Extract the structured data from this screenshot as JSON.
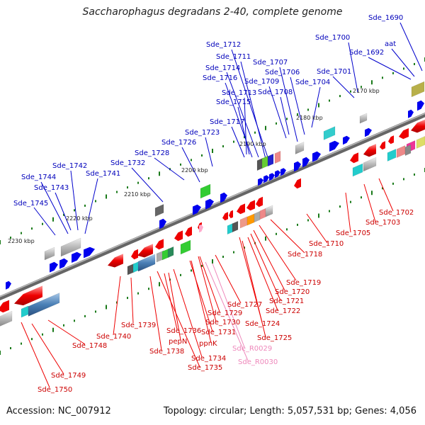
{
  "title": "Saccharophagus degradans 2-40, complete genome",
  "footer": {
    "accession": "Accession: NC_007912",
    "topology": "Topology: circular; Length: 5,057,531 bp; Genes: 4,056"
  },
  "colors": {
    "forward_gene": "#0000ee",
    "reverse_gene": "#ee0000",
    "forward_label": "#0000bb",
    "reverse_label": "#cc0000",
    "rna_label": "#ee88bb",
    "backbone": "#888888",
    "tick": "#1a7a1a"
  },
  "tick_labels": [
    "2170 kbp",
    "2180 kbp",
    "2190 kbp",
    "2200 kbp",
    "2210 kbp",
    "2220 kbp",
    "2230 kbp"
  ],
  "forward_labels": [
    "Sde_1690",
    "Sde_1700",
    "aat",
    "Sde_1692",
    "Sde_1712",
    "Sde_1711",
    "Sde_1707",
    "Sde_1714",
    "Sde_1706",
    "Sde_1716",
    "Sde_1709",
    "Sde_1701",
    "Sde_1704",
    "Sde_1713",
    "Sde_1708",
    "Sde_1715",
    "Sde_1717",
    "Sde_1723",
    "Sde_1726",
    "Sde_1728",
    "Sde_1732",
    "Sde_1742",
    "Sde_1741",
    "Sde_1744",
    "Sde_1743",
    "Sde_1745"
  ],
  "reverse_labels": [
    "Sde_1702",
    "Sde_1703",
    "Sde_1705",
    "Sde_1710",
    "Sde_1718",
    "Sde_1719",
    "Sde_1720",
    "Sde_1721",
    "Sde_1722",
    "Sde_1727",
    "Sde_1724",
    "Sde_1729",
    "Sde_1725",
    "Sde_1730",
    "Sde_1739",
    "Sde_1736",
    "Sde_1731",
    "Sde_1740",
    "pepN",
    "ppnK",
    "Sde_1738",
    "Sde_1748",
    "Sde_1734",
    "Sde_1735",
    "Sde_1749",
    "Sde_1750"
  ],
  "rna_labels": [
    "Sde_R0029",
    "Sde_R0030"
  ]
}
